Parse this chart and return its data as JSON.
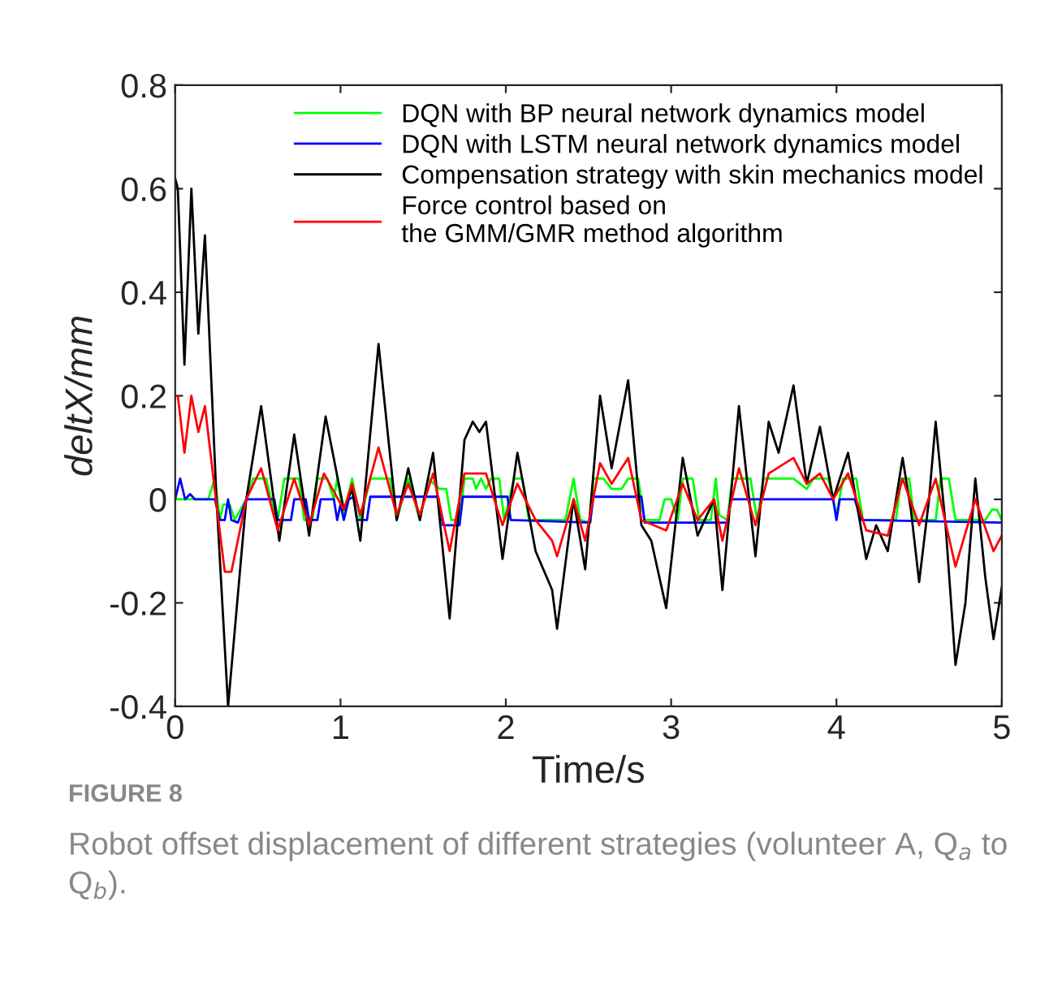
{
  "chart_data": {
    "type": "line",
    "xlabel": "Time/s",
    "ylabel": "deltX/mm",
    "xlim": [
      0,
      5
    ],
    "xticks": [
      0,
      1,
      2,
      3,
      4,
      5
    ],
    "ylim": [
      -0.4,
      0.8
    ],
    "yticks": [
      -0.4,
      -0.2,
      0,
      0.2,
      0.4,
      0.6,
      0.8
    ],
    "grid": false,
    "legend": "top right",
    "marker": "none",
    "line_style": "solid",
    "annotations": [
      "FIGURE 8",
      "Robot offset displacement of different strategies (volunteer A, Q$_{a}$ to Q$_{b}$)."
    ],
    "series": [
      {
        "name": "DQN with BP neural network dynamics model",
        "color": "#00ff00",
        "x": [
          0,
          0.2,
          0.24,
          0.27,
          0.29,
          0.33,
          0.36,
          0.43,
          0.47,
          0.55,
          0.58,
          0.62,
          0.66,
          0.75,
          0.78,
          0.83,
          0.86,
          0.92,
          0.96,
          0.98,
          1.02,
          1.07,
          1.12,
          1.18,
          1.3,
          1.34,
          1.41,
          1.48,
          1.53,
          1.6,
          1.64,
          1.67,
          1.72,
          1.75,
          1.8,
          1.82,
          1.85,
          1.88,
          1.91,
          1.96,
          1.99,
          2.05,
          2.1,
          2.14,
          2.36,
          2.41,
          2.45,
          2.51,
          2.53,
          2.59,
          2.64,
          2.7,
          2.74,
          2.8,
          2.84,
          2.93,
          2.96,
          3.0,
          3.04,
          3.07,
          3.13,
          3.17,
          3.24,
          3.27,
          3.29,
          3.34,
          3.37,
          3.48,
          3.52,
          3.56,
          3.64,
          3.74,
          3.82,
          3.86,
          3.95,
          4.0,
          4.04,
          4.12,
          4.16,
          4.36,
          4.39,
          4.44,
          4.47,
          4.6,
          4.63,
          4.68,
          4.72,
          4.9,
          4.94,
          4.97,
          5.0
        ],
        "values": [
          0,
          0,
          0.04,
          -0.04,
          -0.01,
          -0.01,
          -0.04,
          0,
          0.04,
          0.04,
          0.0,
          -0.04,
          0.04,
          0.04,
          -0.04,
          -0.04,
          0.04,
          0.04,
          0.0,
          0.04,
          -0.03,
          0.04,
          -0.04,
          0.04,
          0.04,
          -0.04,
          0.04,
          -0.04,
          0.04,
          0.02,
          0.02,
          -0.04,
          -0.04,
          0.04,
          0.04,
          0.02,
          0.04,
          0.02,
          0.04,
          0.04,
          -0.04,
          0.04,
          0.04,
          -0.04,
          -0.04,
          0.04,
          -0.04,
          -0.045,
          0.04,
          0.04,
          0.02,
          0.02,
          0.04,
          0.04,
          -0.04,
          -0.04,
          0.0,
          0.0,
          -0.04,
          0.04,
          0.04,
          -0.04,
          -0.04,
          0.04,
          -0.03,
          -0.04,
          0.04,
          0.04,
          -0.04,
          0.04,
          0.04,
          0.04,
          0.02,
          0.04,
          0.04,
          -0.03,
          0.04,
          0.04,
          -0.04,
          -0.04,
          0.04,
          0.04,
          -0.04,
          -0.04,
          0.04,
          0.04,
          -0.04,
          -0.04,
          -0.02,
          -0.02,
          -0.04
        ]
      },
      {
        "name": "DQN with LSTM neural network dynamics model",
        "color": "#0000ff",
        "x": [
          0,
          0.03,
          0.06,
          0.09,
          0.12,
          0.24,
          0.27,
          0.3,
          0.32,
          0.34,
          0.38,
          0.43,
          0.6,
          0.62,
          0.7,
          0.72,
          0.79,
          0.81,
          0.86,
          0.88,
          0.96,
          0.98,
          1.0,
          1.02,
          1.05,
          1.08,
          1.1,
          1.16,
          1.18,
          1.59,
          1.62,
          1.72,
          1.74,
          2.01,
          2.03,
          2.51,
          2.53,
          2.82,
          2.84,
          3.34,
          3.36,
          3.98,
          4.0,
          4.02,
          4.11,
          4.15,
          5.0
        ],
        "values": [
          0,
          0.04,
          0.0,
          0.01,
          0,
          0,
          -0.04,
          -0.04,
          0.0,
          -0.04,
          -0.045,
          0,
          0,
          -0.04,
          -0.04,
          0,
          0,
          -0.04,
          -0.04,
          0,
          0,
          -0.04,
          -0.01,
          -0.04,
          0,
          0.005,
          -0.04,
          -0.04,
          0.005,
          0.005,
          -0.05,
          -0.05,
          0.005,
          0.005,
          -0.04,
          -0.045,
          0.005,
          0.005,
          -0.045,
          -0.045,
          0.0,
          0.0,
          -0.04,
          0,
          0,
          -0.04,
          -0.045
        ]
      },
      {
        "name": "Compensation strategy with skin mechanics model",
        "color": "#000000",
        "x": [
          0,
          0.016,
          0.056,
          0.098,
          0.14,
          0.18,
          0.25,
          0.32,
          0.43,
          0.52,
          0.63,
          0.72,
          0.81,
          0.91,
          1.02,
          1.07,
          1.12,
          1.23,
          1.34,
          1.41,
          1.48,
          1.56,
          1.66,
          1.75,
          1.8,
          1.84,
          1.88,
          1.98,
          2.07,
          2.18,
          2.28,
          2.31,
          2.41,
          2.48,
          2.57,
          2.64,
          2.74,
          2.82,
          2.88,
          2.97,
          3.07,
          3.16,
          3.26,
          3.31,
          3.41,
          3.51,
          3.59,
          3.65,
          3.74,
          3.82,
          3.9,
          3.98,
          4.07,
          4.18,
          4.24,
          4.31,
          4.4,
          4.45,
          4.5,
          4.56,
          4.6,
          4.66,
          4.72,
          4.78,
          4.84,
          4.9,
          4.95,
          5.0
        ],
        "values": [
          0.62,
          0.6,
          0.26,
          0.6,
          0.32,
          0.51,
          0,
          -0.4,
          0,
          0.18,
          -0.08,
          0.125,
          -0.07,
          0.16,
          -0.02,
          0.02,
          -0.08,
          0.3,
          -0.04,
          0.06,
          -0.04,
          0.09,
          -0.23,
          0.115,
          0.15,
          0.13,
          0.15,
          -0.115,
          0.09,
          -0.1,
          -0.175,
          -0.25,
          0,
          -0.135,
          0.2,
          0.06,
          0.23,
          -0.05,
          -0.08,
          -0.21,
          0.08,
          -0.07,
          0,
          -0.175,
          0.18,
          -0.11,
          0.15,
          0.09,
          0.22,
          0.03,
          0.14,
          0,
          0.09,
          -0.115,
          -0.05,
          -0.1,
          0.08,
          -0.02,
          -0.16,
          0.0,
          0.15,
          -0.05,
          -0.32,
          -0.2,
          0.04,
          -0.15,
          -0.27,
          -0.17
        ]
      },
      {
        "name": "Force control based on\nthe GMM/GMR method algorithm",
        "color": "#ff0000",
        "x": [
          0,
          0.016,
          0.056,
          0.098,
          0.14,
          0.18,
          0.25,
          0.3,
          0.34,
          0.43,
          0.52,
          0.62,
          0.72,
          0.81,
          0.9,
          1.02,
          1.07,
          1.12,
          1.23,
          1.34,
          1.41,
          1.48,
          1.56,
          1.66,
          1.75,
          1.88,
          1.98,
          2.07,
          2.18,
          2.28,
          2.31,
          2.41,
          2.48,
          2.57,
          2.64,
          2.74,
          2.82,
          2.97,
          3.07,
          3.16,
          3.26,
          3.31,
          3.41,
          3.51,
          3.59,
          3.74,
          3.82,
          3.9,
          3.98,
          4.07,
          4.18,
          4.31,
          4.4,
          4.5,
          4.6,
          4.72,
          4.84,
          4.95,
          5.0
        ],
        "values": [
          0.2,
          0.2,
          0.09,
          0.2,
          0.13,
          0.18,
          -0.01,
          -0.14,
          -0.14,
          0,
          0.06,
          -0.06,
          0.04,
          -0.05,
          0.05,
          -0.02,
          0.03,
          -0.03,
          0.1,
          -0.03,
          0.03,
          -0.03,
          0.05,
          -0.1,
          0.05,
          0.05,
          -0.05,
          0.03,
          -0.04,
          -0.08,
          -0.11,
          0,
          -0.08,
          0.07,
          0.03,
          0.08,
          -0.04,
          -0.06,
          0.03,
          -0.04,
          0,
          -0.08,
          0.06,
          -0.05,
          0.05,
          0.08,
          0.03,
          0.05,
          0,
          0.05,
          -0.06,
          -0.07,
          0.04,
          -0.05,
          0.04,
          -0.13,
          0.0,
          -0.1,
          -0.07
        ]
      }
    ]
  }
}
